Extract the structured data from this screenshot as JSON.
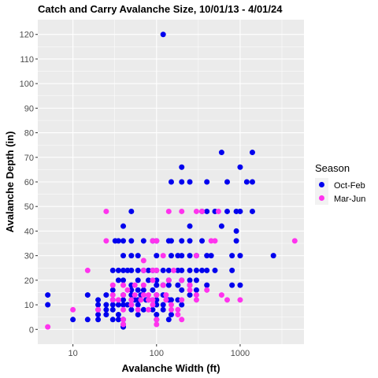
{
  "chart_data": {
    "type": "scatter",
    "title": "Catch and Carry Avalanche Size, 10/01/13 - 4/01/24",
    "xlabel": "Avalanche Width (ft)",
    "ylabel": "Avalanche Depth (in)",
    "x_scale": "log10",
    "xlim": [
      3.8,
      5800
    ],
    "ylim": [
      -6,
      126
    ],
    "x_ticks": [
      10,
      100,
      1000
    ],
    "x_tick_labels": [
      "10",
      "100",
      "1000"
    ],
    "y_ticks": [
      0,
      10,
      20,
      30,
      40,
      50,
      60,
      70,
      80,
      90,
      100,
      110,
      120
    ],
    "y_tick_labels": [
      "0",
      "10",
      "20",
      "30",
      "40",
      "50",
      "60",
      "70",
      "80",
      "90",
      "100",
      "110",
      "120"
    ],
    "grid": true,
    "legend": {
      "title": "Season",
      "placement": "right",
      "entries": [
        {
          "label": "Oct-Feb",
          "color": "#0000ee"
        },
        {
          "label": "Mar-Jun",
          "color": "#ff33ee"
        }
      ]
    },
    "series": [
      {
        "name": "Oct-Feb",
        "color": "#0000ee",
        "points": [
          [
            5,
            14
          ],
          [
            5,
            10
          ],
          [
            10,
            4
          ],
          [
            15,
            14
          ],
          [
            15,
            4
          ],
          [
            20,
            12
          ],
          [
            20,
            10
          ],
          [
            20,
            8
          ],
          [
            20,
            6
          ],
          [
            20,
            4
          ],
          [
            25,
            14
          ],
          [
            25,
            10
          ],
          [
            25,
            8
          ],
          [
            25,
            6
          ],
          [
            30,
            24
          ],
          [
            30,
            16
          ],
          [
            30,
            12
          ],
          [
            30,
            10
          ],
          [
            30,
            8
          ],
          [
            30,
            4
          ],
          [
            32,
            36
          ],
          [
            35,
            24
          ],
          [
            35,
            36
          ],
          [
            35,
            20
          ],
          [
            35,
            10
          ],
          [
            35,
            6
          ],
          [
            35,
            4
          ],
          [
            40,
            42
          ],
          [
            40,
            36
          ],
          [
            40,
            30
          ],
          [
            40,
            24
          ],
          [
            40,
            20
          ],
          [
            40,
            14
          ],
          [
            40,
            12
          ],
          [
            40,
            10
          ],
          [
            40,
            4
          ],
          [
            40,
            2
          ],
          [
            40,
            1
          ],
          [
            45,
            24
          ],
          [
            45,
            10
          ],
          [
            50,
            48
          ],
          [
            50,
            36
          ],
          [
            50,
            30
          ],
          [
            50,
            24
          ],
          [
            50,
            18
          ],
          [
            50,
            16
          ],
          [
            50,
            14
          ],
          [
            50,
            12
          ],
          [
            50,
            10
          ],
          [
            50,
            8
          ],
          [
            55,
            12
          ],
          [
            60,
            30
          ],
          [
            60,
            24
          ],
          [
            60,
            20
          ],
          [
            60,
            16
          ],
          [
            60,
            12
          ],
          [
            60,
            10
          ],
          [
            60,
            6
          ],
          [
            65,
            14
          ],
          [
            70,
            36
          ],
          [
            70,
            24
          ],
          [
            70,
            16
          ],
          [
            70,
            8
          ],
          [
            75,
            12
          ],
          [
            80,
            24
          ],
          [
            80,
            20
          ],
          [
            80,
            12
          ],
          [
            90,
            36
          ],
          [
            90,
            24
          ],
          [
            90,
            16
          ],
          [
            90,
            12
          ],
          [
            90,
            8
          ],
          [
            100,
            36
          ],
          [
            100,
            30
          ],
          [
            100,
            24
          ],
          [
            100,
            20
          ],
          [
            100,
            18
          ],
          [
            100,
            14
          ],
          [
            100,
            12
          ],
          [
            100,
            10
          ],
          [
            100,
            6
          ],
          [
            100,
            4
          ],
          [
            120,
            120
          ],
          [
            120,
            24
          ],
          [
            120,
            18
          ],
          [
            120,
            14
          ],
          [
            120,
            10
          ],
          [
            120,
            8
          ],
          [
            140,
            36
          ],
          [
            140,
            24
          ],
          [
            140,
            20
          ],
          [
            140,
            18
          ],
          [
            140,
            12
          ],
          [
            140,
            4
          ],
          [
            150,
            60
          ],
          [
            150,
            36
          ],
          [
            150,
            30
          ],
          [
            150,
            12
          ],
          [
            150,
            6
          ],
          [
            180,
            30
          ],
          [
            180,
            24
          ],
          [
            180,
            18
          ],
          [
            180,
            12
          ],
          [
            200,
            66
          ],
          [
            200,
            60
          ],
          [
            200,
            36
          ],
          [
            200,
            30
          ],
          [
            200,
            24
          ],
          [
            200,
            20
          ],
          [
            200,
            16
          ],
          [
            200,
            10
          ],
          [
            250,
            60
          ],
          [
            250,
            42
          ],
          [
            250,
            36
          ],
          [
            250,
            30
          ],
          [
            250,
            24
          ],
          [
            250,
            20
          ],
          [
            250,
            18
          ],
          [
            250,
            14
          ],
          [
            300,
            24
          ],
          [
            300,
            20
          ],
          [
            300,
            16
          ],
          [
            300,
            30
          ],
          [
            350,
            36
          ],
          [
            350,
            24
          ],
          [
            350,
            48
          ],
          [
            400,
            60
          ],
          [
            400,
            48
          ],
          [
            400,
            30
          ],
          [
            400,
            24
          ],
          [
            400,
            18
          ],
          [
            450,
            30
          ],
          [
            500,
            48
          ],
          [
            500,
            24
          ],
          [
            600,
            72
          ],
          [
            600,
            42
          ],
          [
            700,
            60
          ],
          [
            700,
            48
          ],
          [
            800,
            30
          ],
          [
            800,
            24
          ],
          [
            800,
            18
          ],
          [
            900,
            48
          ],
          [
            900,
            40
          ],
          [
            900,
            36
          ],
          [
            1000,
            66
          ],
          [
            1000,
            48
          ],
          [
            1000,
            30
          ],
          [
            1000,
            18
          ],
          [
            1200,
            60
          ],
          [
            1400,
            72
          ],
          [
            1400,
            60
          ],
          [
            1400,
            48
          ],
          [
            2500,
            30
          ]
        ]
      },
      {
        "name": "Mar-Jun",
        "color": "#ff33ee",
        "points": [
          [
            5,
            1
          ],
          [
            10,
            8
          ],
          [
            15,
            24
          ],
          [
            20,
            8
          ],
          [
            25,
            48
          ],
          [
            25,
            36
          ],
          [
            30,
            18
          ],
          [
            30,
            14
          ],
          [
            30,
            12
          ],
          [
            35,
            12
          ],
          [
            40,
            18
          ],
          [
            40,
            14
          ],
          [
            40,
            8
          ],
          [
            40,
            4
          ],
          [
            40,
            2
          ],
          [
            45,
            16
          ],
          [
            50,
            12
          ],
          [
            50,
            10
          ],
          [
            55,
            18
          ],
          [
            55,
            14
          ],
          [
            60,
            8
          ],
          [
            65,
            12
          ],
          [
            70,
            28
          ],
          [
            70,
            24
          ],
          [
            70,
            18
          ],
          [
            70,
            14
          ],
          [
            80,
            14
          ],
          [
            80,
            12
          ],
          [
            80,
            8
          ],
          [
            90,
            36
          ],
          [
            90,
            24
          ],
          [
            90,
            20
          ],
          [
            90,
            12
          ],
          [
            90,
            10
          ],
          [
            100,
            36
          ],
          [
            100,
            24
          ],
          [
            100,
            14
          ],
          [
            100,
            4
          ],
          [
            100,
            2
          ],
          [
            120,
            30
          ],
          [
            120,
            18
          ],
          [
            130,
            14
          ],
          [
            130,
            12
          ],
          [
            140,
            48
          ],
          [
            140,
            20
          ],
          [
            150,
            10
          ],
          [
            150,
            8
          ],
          [
            160,
            24
          ],
          [
            180,
            8
          ],
          [
            180,
            6
          ],
          [
            200,
            48
          ],
          [
            200,
            20
          ],
          [
            200,
            12
          ],
          [
            200,
            4
          ],
          [
            250,
            18
          ],
          [
            250,
            16
          ],
          [
            300,
            48
          ],
          [
            300,
            30
          ],
          [
            300,
            14
          ],
          [
            300,
            12
          ],
          [
            350,
            48
          ],
          [
            400,
            16
          ],
          [
            450,
            36
          ],
          [
            500,
            36
          ],
          [
            550,
            48
          ],
          [
            600,
            14
          ],
          [
            700,
            12
          ],
          [
            1000,
            12
          ],
          [
            4500,
            36
          ]
        ]
      }
    ]
  }
}
